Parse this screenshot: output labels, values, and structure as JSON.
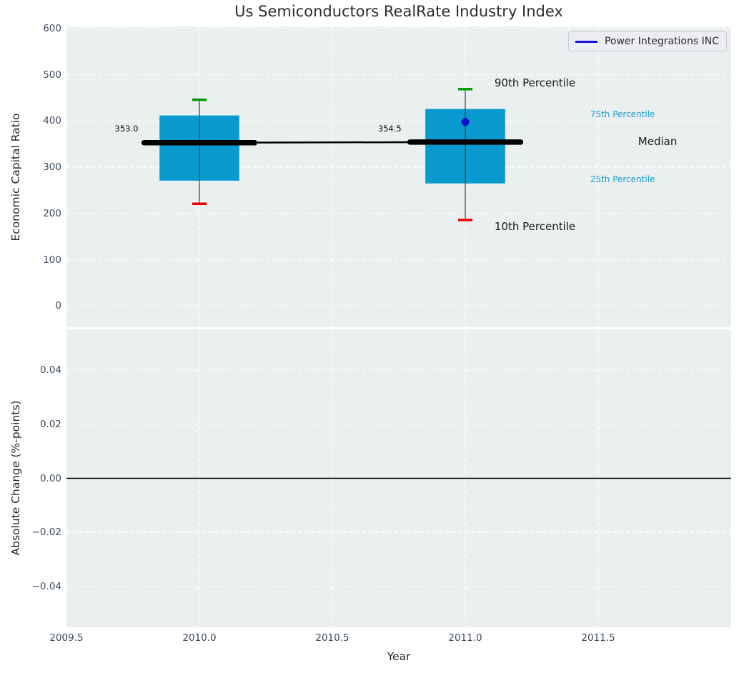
{
  "title": "Us Semiconductors RealRate Industry Index",
  "legend": {
    "label": "Power Integrations INC"
  },
  "colors": {
    "figure_bg": "#ffffff",
    "plot_bg": "#eaefef",
    "grid": "#ffffff",
    "box_fill": "#0899ce",
    "median_line": "#000000",
    "whisker": "#3d3d3d",
    "p90_cap": "#009a00",
    "p10_cap": "#ed0000",
    "company_line": "#1414dd",
    "company_dot": "#0f0fcf",
    "tick_label": "#3c4b5d",
    "axis_label": "#242424",
    "annotation_dark": "#1a1a1a",
    "annotation_cyan": "#189fd4",
    "zero_line": "#000000"
  },
  "chart_data": [
    {
      "type": "boxplot",
      "ylabel": "Economic Capital Ratio",
      "xlim": [
        2009.5,
        2012.0
      ],
      "ylim": [
        -46,
        603
      ],
      "xticks": {
        "values": [
          2009.5,
          2010.0,
          2010.5,
          2011.0,
          2011.5
        ],
        "labels": [
          "2009.5",
          "2010.0",
          "2010.5",
          "2011.0",
          "2011.5"
        ]
      },
      "show_xtick_labels": false,
      "yticks": {
        "values": [
          0,
          100,
          200,
          300,
          400,
          500,
          600
        ],
        "labels": [
          "0",
          "100",
          "200",
          "300",
          "400",
          "500",
          "600"
        ]
      },
      "grid": true,
      "legend_position": "upper right",
      "boxes": [
        {
          "x": 2010.0,
          "box_halfwidth": 0.15,
          "cap_halfwidth": 0.027,
          "median_halfwidth": 0.208,
          "p10": 221,
          "p25": 271,
          "median": 353.0,
          "p75": 412,
          "p90": 446,
          "median_label": "353.0",
          "label_x": 2009.77,
          "label_y": 383
        },
        {
          "x": 2011.0,
          "box_halfwidth": 0.15,
          "cap_halfwidth": 0.027,
          "median_halfwidth": 0.208,
          "p10": 186,
          "p25": 265,
          "median": 354.5,
          "p75": 426,
          "p90": 469,
          "median_label": "354.5",
          "label_x": 2010.76,
          "label_y": 384
        }
      ],
      "median_trend": [
        [
          2010.0,
          353.0
        ],
        [
          2011.0,
          354.5
        ]
      ],
      "series": [
        {
          "name": "Power Integrations INC",
          "points": [
            {
              "x": 2011.0,
              "y": 398
            }
          ]
        }
      ],
      "annotations": [
        {
          "text": "90th Percentile",
          "x": 2011.11,
          "y": 483,
          "color": "#1a1a1a",
          "size": 15,
          "align": "left"
        },
        {
          "text": "75th Percentile",
          "x": 2011.47,
          "y": 414,
          "color": "#189fd4",
          "size": 12,
          "align": "left"
        },
        {
          "text": "Median",
          "x": 2011.65,
          "y": 356,
          "color": "#1a1a1a",
          "size": 15,
          "align": "left"
        },
        {
          "text": "25th Percentile",
          "x": 2011.47,
          "y": 274,
          "color": "#189fd4",
          "size": 12,
          "align": "left"
        },
        {
          "text": "10th Percentile",
          "x": 2011.11,
          "y": 172,
          "color": "#1a1a1a",
          "size": 15,
          "align": "left"
        },
        {
          "text": "353.0",
          "x": 2009.77,
          "y": 383,
          "color": "#111111",
          "size": 11.5,
          "align": "right"
        },
        {
          "text": "354.5",
          "x": 2010.76,
          "y": 384,
          "color": "#111111",
          "size": 11.5,
          "align": "right"
        }
      ]
    },
    {
      "type": "line",
      "ylabel": "Absolute Change (%-points)",
      "xlabel": "Year",
      "xlim": [
        2009.5,
        2012.0
      ],
      "ylim": [
        -0.055,
        0.055
      ],
      "xticks": {
        "values": [
          2009.5,
          2010.0,
          2010.5,
          2011.0,
          2011.5
        ],
        "labels": [
          "2009.5",
          "2010.0",
          "2010.5",
          "2011.0",
          "2011.5"
        ]
      },
      "show_xtick_labels": true,
      "yticks": {
        "values": [
          0.04,
          0.02,
          0.0,
          -0.02,
          -0.04
        ],
        "labels": [
          "0.04",
          "0.02",
          "0.00",
          "−0.02",
          "−0.04"
        ]
      },
      "grid": true,
      "zero_line": 0.0
    }
  ]
}
